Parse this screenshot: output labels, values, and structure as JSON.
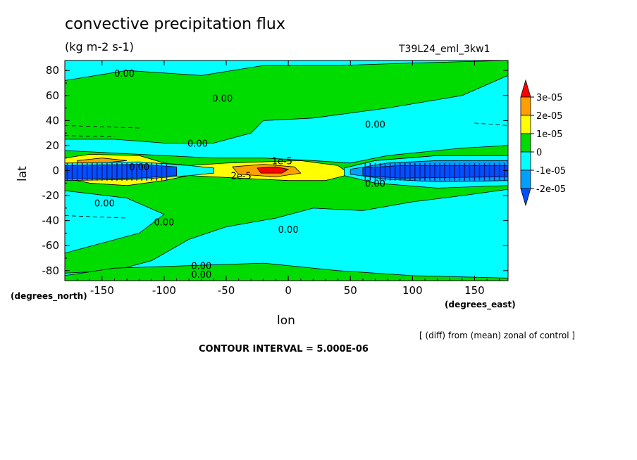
{
  "title": "convective precipitation flux",
  "units": "(kg m-2 s-1)",
  "run_label": "T39L24_eml_3kw1",
  "diff_note": "[ (diff) from (mean) zonal of control ]",
  "contour_interval": "CONTOUR INTERVAL = 5.000E-06",
  "chart_data": {
    "type": "heatmap",
    "title": "convective precipitation flux",
    "xlabel": "lon",
    "ylabel": "lat",
    "x_unit_label": "(degrees_east)",
    "y_unit_label": "(degrees_north)",
    "xlim": [
      -180,
      177
    ],
    "ylim": [
      -88,
      88
    ],
    "xticks": [
      -150,
      -100,
      -50,
      0,
      50,
      100,
      150
    ],
    "xtick_labels": [
      "-150",
      "-100",
      "-50",
      "0",
      "50",
      "100",
      "150"
    ],
    "yticks": [
      -80,
      -60,
      -40,
      -20,
      0,
      20,
      40,
      60,
      80
    ],
    "ytick_labels": [
      "-80",
      "-60",
      "-40",
      "-20",
      "0",
      "20",
      "40",
      "60",
      "80"
    ],
    "colorbar": {
      "labels": [
        "3e-05",
        "2e-05",
        "1e-05",
        "0",
        "-1e-05",
        "-2e-05"
      ],
      "bins": [
        {
          "range": [
            "3e-05",
            null
          ],
          "color": "#ff0000"
        },
        {
          "range": [
            "2e-05",
            "3e-05"
          ],
          "color": "#ffa000"
        },
        {
          "range": [
            "1e-05",
            "2e-05"
          ],
          "color": "#ffff00"
        },
        {
          "range": [
            "0",
            "1e-05"
          ],
          "color": "#00dc00"
        },
        {
          "range": [
            "-1e-05",
            "0"
          ],
          "color": "#00ffff"
        },
        {
          "range": [
            "-2e-05",
            "-1e-05"
          ],
          "color": "#00a0ff"
        },
        {
          "range": [
            null,
            "-2e-05"
          ],
          "color": "#0050ff"
        }
      ]
    },
    "regions": [
      {
        "value_class": "0 to 1e-05",
        "color": "#00dc00",
        "polygon": [
          [
            -180,
            72
          ],
          [
            -130,
            80
          ],
          [
            -70,
            76
          ],
          [
            -20,
            84
          ],
          [
            40,
            84
          ],
          [
            100,
            86
          ],
          [
            177,
            88
          ],
          [
            177,
            76
          ],
          [
            140,
            60
          ],
          [
            80,
            50
          ],
          [
            20,
            42
          ],
          [
            -20,
            40
          ],
          [
            -30,
            30
          ],
          [
            -60,
            22
          ],
          [
            -100,
            22
          ],
          [
            -140,
            25
          ],
          [
            -180,
            25
          ]
        ]
      },
      {
        "value_class": "0 to 1e-05",
        "color": "#00dc00",
        "polygon": [
          [
            -180,
            16
          ],
          [
            -140,
            14
          ],
          [
            -100,
            12
          ],
          [
            -60,
            10
          ],
          [
            -20,
            10
          ],
          [
            20,
            8
          ],
          [
            50,
            6
          ],
          [
            80,
            12
          ],
          [
            140,
            18
          ],
          [
            177,
            20
          ],
          [
            177,
            -15
          ],
          [
            140,
            -20
          ],
          [
            100,
            -25
          ],
          [
            60,
            -32
          ],
          [
            20,
            -30
          ],
          [
            -10,
            -38
          ],
          [
            -50,
            -45
          ],
          [
            -80,
            -55
          ],
          [
            -110,
            -72
          ],
          [
            -140,
            -80
          ],
          [
            -180,
            -82
          ],
          [
            -180,
            -66
          ],
          [
            -150,
            -58
          ],
          [
            -120,
            -50
          ],
          [
            -100,
            -35
          ],
          [
            -130,
            -22
          ],
          [
            -180,
            -16
          ]
        ]
      },
      {
        "value_class": "0 to 1e-05",
        "color": "#00dc00",
        "polygon": [
          [
            -140,
            -78
          ],
          [
            -80,
            -76
          ],
          [
            -20,
            -74
          ],
          [
            40,
            -80
          ],
          [
            100,
            -84
          ],
          [
            177,
            -86
          ],
          [
            177,
            -88
          ],
          [
            -180,
            -88
          ],
          [
            -180,
            -84
          ]
        ]
      },
      {
        "value_class": "1e-05 to 2e-05",
        "color": "#ffff00",
        "polygon": [
          [
            -180,
            10
          ],
          [
            -160,
            13
          ],
          [
            -120,
            12
          ],
          [
            -100,
            6
          ],
          [
            -80,
            4
          ],
          [
            -50,
            6
          ],
          [
            -20,
            7
          ],
          [
            10,
            8
          ],
          [
            40,
            4
          ],
          [
            50,
            -3
          ],
          [
            30,
            -8
          ],
          [
            0,
            -8
          ],
          [
            -40,
            -6
          ],
          [
            -80,
            -4
          ],
          [
            -100,
            -8
          ],
          [
            -130,
            -12
          ],
          [
            -160,
            -10
          ],
          [
            -180,
            -6
          ]
        ]
      },
      {
        "value_class": "2e-05 to 3e-05",
        "color": "#ffa000",
        "polygon": [
          [
            -170,
            8
          ],
          [
            -150,
            10
          ],
          [
            -130,
            8
          ],
          [
            -150,
            6
          ],
          [
            -170,
            5
          ]
        ]
      },
      {
        "value_class": "2e-05 to 3e-05",
        "color": "#ffa000",
        "polygon": [
          [
            -45,
            3
          ],
          [
            -20,
            5
          ],
          [
            5,
            3
          ],
          [
            10,
            -2
          ],
          [
            -10,
            -5
          ],
          [
            -40,
            -3
          ]
        ]
      },
      {
        "value_class": "above 3e-05",
        "color": "#ff0000",
        "polygon": [
          [
            -25,
            2
          ],
          [
            -10,
            3
          ],
          [
            0,
            1
          ],
          [
            -5,
            -2
          ],
          [
            -22,
            -2
          ]
        ]
      },
      {
        "value_class": "-1e-05 to 0",
        "color": "#00ffff",
        "polygon": [
          [
            45,
            2
          ],
          [
            70,
            8
          ],
          [
            120,
            12
          ],
          [
            177,
            12
          ],
          [
            177,
            -12
          ],
          [
            120,
            -14
          ],
          [
            70,
            -10
          ],
          [
            45,
            -4
          ]
        ]
      },
      {
        "value_class": "-2e-05 to -1e-05",
        "color": "#00a0ff",
        "polygon": [
          [
            50,
            1
          ],
          [
            80,
            6
          ],
          [
            120,
            8
          ],
          [
            177,
            8
          ],
          [
            177,
            -8
          ],
          [
            120,
            -9
          ],
          [
            80,
            -7
          ],
          [
            50,
            -3
          ]
        ]
      },
      {
        "value_class": "below -2e-05",
        "color": "#0050ff",
        "polygon": [
          [
            60,
            2
          ],
          [
            90,
            4
          ],
          [
            177,
            4
          ],
          [
            177,
            -5
          ],
          [
            90,
            -6
          ],
          [
            60,
            -4
          ]
        ]
      },
      {
        "value_class": "-1e-05 to 0",
        "color": "#00ffff",
        "polygon": [
          [
            -180,
            6
          ],
          [
            -120,
            7
          ],
          [
            -80,
            4
          ],
          [
            -60,
            2
          ],
          [
            -60,
            -2
          ],
          [
            -80,
            -4
          ],
          [
            -120,
            -7
          ],
          [
            -180,
            -8
          ]
        ]
      },
      {
        "value_class": "below -2e-05",
        "color": "#0050ff",
        "polygon": [
          [
            -180,
            4
          ],
          [
            -120,
            5
          ],
          [
            -90,
            3
          ],
          [
            -90,
            -4
          ],
          [
            -120,
            -6
          ],
          [
            -180,
            -7
          ]
        ]
      }
    ],
    "contour_labels": [
      {
        "text": "0.00",
        "lon": -132,
        "lat": 78
      },
      {
        "text": "0.00",
        "lon": -53,
        "lat": 58
      },
      {
        "text": "0.00",
        "lon": 70,
        "lat": 37
      },
      {
        "text": "0.00",
        "lon": -73,
        "lat": 22
      },
      {
        "text": "1e-5",
        "lon": -5,
        "lat": 8
      },
      {
        "text": "2e-5",
        "lon": -38,
        "lat": -4
      },
      {
        "text": "0.00",
        "lon": 70,
        "lat": -10
      },
      {
        "text": "0.00",
        "lon": -148,
        "lat": -26
      },
      {
        "text": "0.00",
        "lon": -100,
        "lat": -41
      },
      {
        "text": "0.00",
        "lon": 0,
        "lat": -47
      },
      {
        "text": "0.00",
        "lon": -70,
        "lat": -76
      },
      {
        "text": "0.00",
        "lon": -70,
        "lat": -83
      },
      {
        "text": "0.00",
        "lon": -120,
        "lat": 3
      }
    ]
  }
}
